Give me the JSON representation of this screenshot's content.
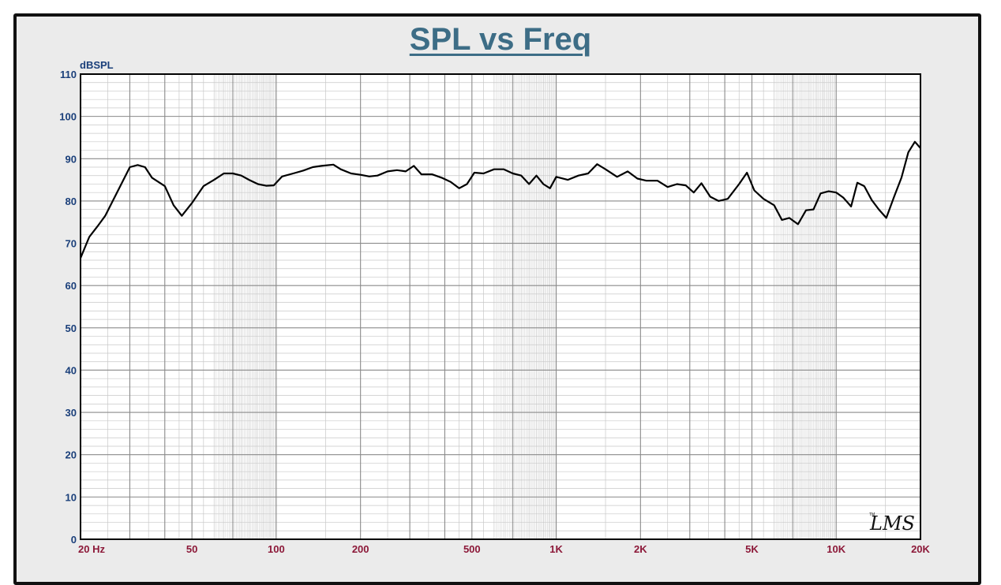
{
  "chart_data": {
    "type": "line",
    "title": "SPL vs Freq",
    "ylabel": "dBSPL",
    "xlabel": "",
    "x_scale": "log",
    "xlim": [
      20,
      20000
    ],
    "ylim": [
      0,
      110
    ],
    "grid": true,
    "y_ticks": [
      "0",
      "10",
      "20",
      "30",
      "40",
      "50",
      "60",
      "70",
      "80",
      "90",
      "100",
      "110"
    ],
    "x_ticks": [
      {
        "value": 20,
        "label": "20  Hz"
      },
      {
        "value": 50,
        "label": "50"
      },
      {
        "value": 100,
        "label": "100"
      },
      {
        "value": 200,
        "label": "200"
      },
      {
        "value": 500,
        "label": "500"
      },
      {
        "value": 1000,
        "label": "1K"
      },
      {
        "value": 2000,
        "label": "2K"
      },
      {
        "value": 5000,
        "label": "5K"
      },
      {
        "value": 10000,
        "label": "10K"
      },
      {
        "value": 20000,
        "label": "20K"
      }
    ],
    "series": [
      {
        "color": "#000000",
        "points": [
          [
            20,
            66.5
          ],
          [
            21.5,
            71.5
          ],
          [
            23,
            74
          ],
          [
            24.5,
            76.5
          ],
          [
            27,
            82
          ],
          [
            30,
            88
          ],
          [
            32,
            88.5
          ],
          [
            34,
            88
          ],
          [
            36,
            85.5
          ],
          [
            40,
            83.5
          ],
          [
            43,
            79
          ],
          [
            46,
            76.5
          ],
          [
            50,
            79.5
          ],
          [
            55,
            83.5
          ],
          [
            60,
            85
          ],
          [
            65,
            86.5
          ],
          [
            70,
            86.5
          ],
          [
            75,
            86
          ],
          [
            80,
            85
          ],
          [
            86,
            84
          ],
          [
            92,
            83.6
          ],
          [
            98,
            83.7
          ],
          [
            105,
            85.8
          ],
          [
            115,
            86.5
          ],
          [
            125,
            87.2
          ],
          [
            135,
            88
          ],
          [
            145,
            88.3
          ],
          [
            160,
            88.6
          ],
          [
            170,
            87.5
          ],
          [
            185,
            86.5
          ],
          [
            200,
            86.2
          ],
          [
            215,
            85.8
          ],
          [
            230,
            86
          ],
          [
            250,
            87
          ],
          [
            270,
            87.3
          ],
          [
            290,
            87
          ],
          [
            310,
            88.3
          ],
          [
            330,
            86.3
          ],
          [
            360,
            86.3
          ],
          [
            390,
            85.5
          ],
          [
            420,
            84.5
          ],
          [
            450,
            83
          ],
          [
            480,
            84
          ],
          [
            510,
            86.7
          ],
          [
            550,
            86.5
          ],
          [
            600,
            87.5
          ],
          [
            650,
            87.5
          ],
          [
            700,
            86.5
          ],
          [
            750,
            86
          ],
          [
            800,
            84
          ],
          [
            850,
            86
          ],
          [
            900,
            84
          ],
          [
            950,
            83
          ],
          [
            1000,
            85.7
          ],
          [
            1100,
            85
          ],
          [
            1200,
            86
          ],
          [
            1300,
            86.5
          ],
          [
            1400,
            88.7
          ],
          [
            1500,
            87.5
          ],
          [
            1650,
            85.7
          ],
          [
            1800,
            87
          ],
          [
            1950,
            85.3
          ],
          [
            2100,
            84.8
          ],
          [
            2300,
            84.8
          ],
          [
            2500,
            83.3
          ],
          [
            2700,
            84
          ],
          [
            2900,
            83.7
          ],
          [
            3100,
            82
          ],
          [
            3300,
            84.2
          ],
          [
            3550,
            81
          ],
          [
            3800,
            80
          ],
          [
            4100,
            80.5
          ],
          [
            4500,
            84
          ],
          [
            4800,
            86.7
          ],
          [
            5100,
            82.5
          ],
          [
            5500,
            80.5
          ],
          [
            6000,
            79
          ],
          [
            6400,
            75.5
          ],
          [
            6800,
            76
          ],
          [
            7300,
            74.5
          ],
          [
            7800,
            77.8
          ],
          [
            8300,
            78
          ],
          [
            8800,
            81.8
          ],
          [
            9400,
            82.3
          ],
          [
            10000,
            82
          ],
          [
            10600,
            80.8
          ],
          [
            11300,
            78.7
          ],
          [
            11900,
            84.3
          ],
          [
            12600,
            83.5
          ],
          [
            13400,
            80.2
          ],
          [
            14200,
            78
          ],
          [
            15100,
            76
          ],
          [
            16100,
            81
          ],
          [
            17100,
            85.5
          ],
          [
            18100,
            91.5
          ],
          [
            19100,
            94
          ],
          [
            20000,
            92.5
          ]
        ]
      }
    ]
  },
  "logo": {
    "text": "LMS",
    "mark": "TM"
  }
}
